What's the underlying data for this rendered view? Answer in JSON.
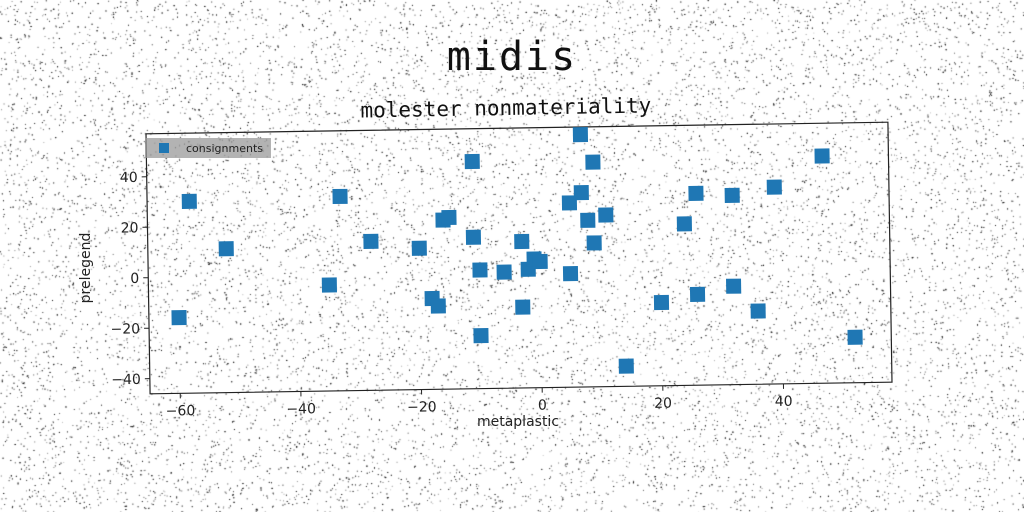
{
  "suptitle": "midis",
  "chart_data": {
    "type": "scatter",
    "title": "molester nonmateriality",
    "xlabel": "metaplastic",
    "ylabel": "prelegend",
    "xlim": [
      -65,
      58
    ],
    "ylim": [
      -46,
      57
    ],
    "xticks": [
      -60,
      -40,
      -20,
      0,
      20,
      40
    ],
    "yticks": [
      -40,
      -20,
      0,
      20,
      40
    ],
    "xtick_labels": [
      "−60",
      "−40",
      "−20",
      "0",
      "20",
      "40"
    ],
    "ytick_labels": [
      "−40",
      "−20",
      "0",
      "20",
      "40"
    ],
    "grid": false,
    "legend_position": "top-left",
    "series": [
      {
        "name": "consignments",
        "color": "#1f77b4",
        "marker": "square",
        "points": [
          [
            -60,
            -16
          ],
          [
            -58,
            30
          ],
          [
            -52,
            11
          ],
          [
            -35,
            -4
          ],
          [
            -33,
            31
          ],
          [
            -28,
            13
          ],
          [
            -20,
            10
          ],
          [
            -18,
            -10
          ],
          [
            -17,
            -13
          ],
          [
            -16,
            21
          ],
          [
            -15,
            22
          ],
          [
            -11,
            14
          ],
          [
            -11,
            44
          ],
          [
            -10,
            1
          ],
          [
            -10,
            -25
          ],
          [
            -6,
            0
          ],
          [
            -3,
            12
          ],
          [
            -3,
            -14
          ],
          [
            -2,
            1
          ],
          [
            -1,
            5
          ],
          [
            0,
            4
          ],
          [
            5,
            -1
          ],
          [
            5,
            27
          ],
          [
            7,
            54
          ],
          [
            7,
            31
          ],
          [
            8,
            20
          ],
          [
            9,
            43
          ],
          [
            9,
            11
          ],
          [
            11,
            22
          ],
          [
            14,
            -38
          ],
          [
            20,
            -13
          ],
          [
            24,
            18
          ],
          [
            26,
            -10
          ],
          [
            26,
            30
          ],
          [
            32,
            -7
          ],
          [
            32,
            29
          ],
          [
            36,
            -17
          ],
          [
            39,
            32
          ],
          [
            47,
            44
          ],
          [
            52,
            -28
          ]
        ]
      }
    ]
  }
}
